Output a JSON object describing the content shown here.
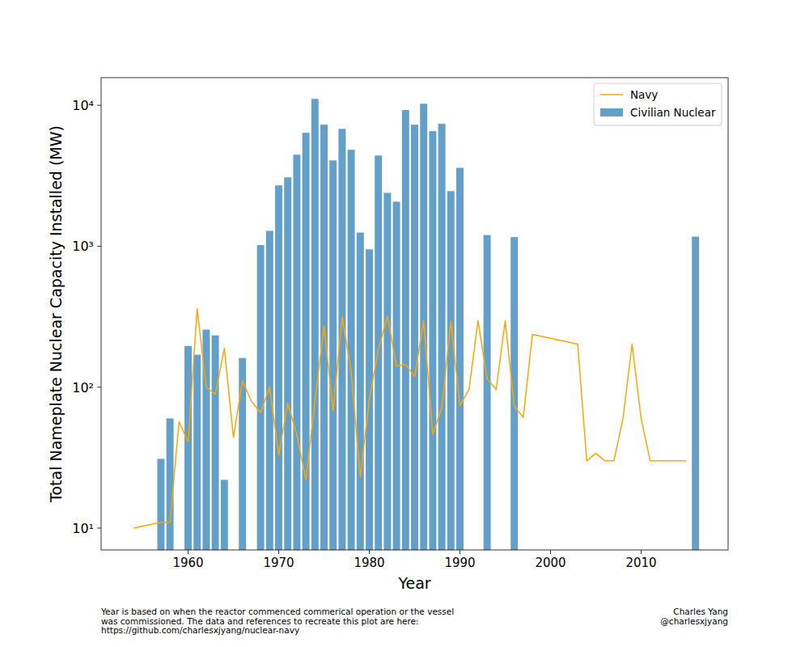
{
  "chart_data": {
    "type": "bar",
    "x_label": "Year",
    "y_label": "Total Nameplate Nuclear Capacity Installed (MW)",
    "footnote": [
      "Year is based on when the reactor commenced commerical operation or the vessel",
      "was commissioned. The data and references to recreate this plot are here:",
      "https://github.com/charlesxjyang/nuclear-navy"
    ],
    "credit": [
      "Charles Yang",
      "@charlesxjyang"
    ],
    "log": "y",
    "legend": "upper right",
    "grid": false,
    "xlim": [
      1950.4,
      2019.6
    ],
    "xticks": [
      1960,
      1970,
      1980,
      1990,
      2000,
      2010
    ],
    "ylim": [
      7,
      15700
    ],
    "yticks": [
      {
        "value": 10,
        "label": "10¹"
      },
      {
        "value": 100,
        "label": "10²"
      },
      {
        "value": 1000,
        "label": "10³"
      },
      {
        "value": 10000,
        "label": "10⁴"
      }
    ],
    "series": [
      {
        "name": "Navy",
        "type": "line",
        "color": "#ffa500",
        "x": [
          1954,
          1957,
          1958,
          1959,
          1960,
          1961,
          1962,
          1963,
          1964,
          1965,
          1966,
          1967,
          1968,
          1969,
          1970,
          1971,
          1972,
          1973,
          1974,
          1975,
          1976,
          1977,
          1978,
          1979,
          1980,
          1981,
          1982,
          1983,
          1984,
          1985,
          1986,
          1987,
          1988,
          1989,
          1990,
          1991,
          1992,
          1993,
          1994,
          1995,
          1996,
          1997,
          1998,
          2003,
          2004,
          2005,
          2006,
          2007,
          2008,
          2009,
          2010,
          2011,
          2015
        ],
        "values": [
          10,
          11,
          11,
          57,
          41,
          360,
          100,
          89,
          189,
          44,
          111,
          79,
          66,
          100,
          33,
          77,
          46,
          22,
          80,
          270,
          68,
          316,
          128,
          23,
          82,
          184,
          320,
          141,
          145,
          119,
          296,
          46,
          72,
          292,
          74,
          96,
          296,
          115,
          96,
          296,
          73,
          61,
          237,
          202,
          30,
          34,
          30,
          30,
          60,
          202,
          60,
          30,
          30
        ]
      },
      {
        "name": "Civilian Nuclear",
        "type": "bar",
        "color": "#1f77b4",
        "x": [
          1957,
          1958,
          1960,
          1961,
          1962,
          1963,
          1964,
          1966,
          1968,
          1969,
          1970,
          1971,
          1972,
          1973,
          1974,
          1975,
          1976,
          1977,
          1978,
          1979,
          1980,
          1981,
          1982,
          1983,
          1984,
          1985,
          1986,
          1987,
          1988,
          1989,
          1990,
          1993,
          1996,
          2016
        ],
        "values": [
          31,
          60,
          196,
          170,
          256,
          233,
          22,
          161,
          1020,
          1285,
          2700,
          3080,
          4460,
          6380,
          11100,
          7280,
          4060,
          6800,
          4830,
          1250,
          950,
          4400,
          2390,
          2070,
          9250,
          7280,
          10250,
          6550,
          7380,
          2460,
          3600,
          1200,
          1160,
          1170
        ]
      }
    ]
  }
}
